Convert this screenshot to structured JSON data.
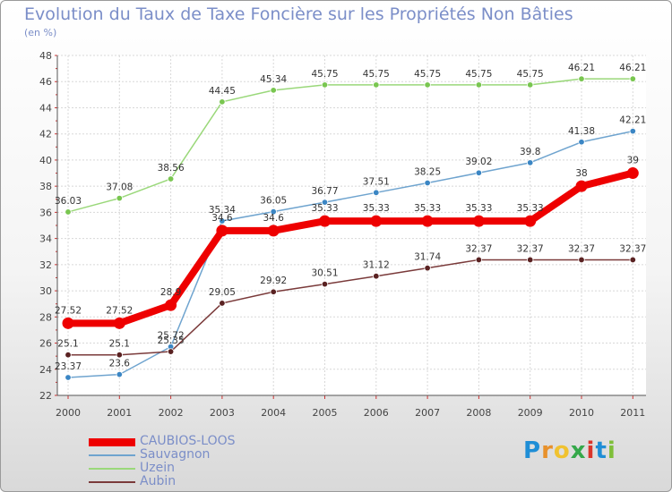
{
  "title": "Evolution du Taux de Taxe Foncière sur les Propriétés Non Bâties",
  "subtitle": "(en %)",
  "logo": {
    "text": "Proxiti",
    "colors": [
      "#1f8ed6",
      "#e8912b",
      "#f0c230",
      "#35a84a",
      "#d9352b",
      "#1f8ed6",
      "#7fbf3a"
    ]
  },
  "chart_data": {
    "type": "line",
    "title": "Evolution du Taux de Taxe Foncière sur les Propriétés Non Bâties",
    "ylabel": "(en %)",
    "xlabel": "",
    "ylim": [
      22,
      48
    ],
    "yticks": [
      22,
      24,
      26,
      28,
      30,
      32,
      34,
      36,
      38,
      40,
      42,
      44,
      46,
      48
    ],
    "grid": true,
    "categories": [
      "2000",
      "2001",
      "2002",
      "2003",
      "2004",
      "2005",
      "2006",
      "2007",
      "2008",
      "2009",
      "2010",
      "2011"
    ],
    "series": [
      {
        "name": "CAUBIOS-LOOS",
        "color": "#ee0000",
        "pointColor": "#ee0000",
        "emphasis": true,
        "values": [
          27.52,
          27.52,
          28.9,
          34.6,
          34.6,
          35.33,
          35.33,
          35.33,
          35.33,
          35.33,
          38,
          39
        ],
        "labels": [
          "27.52",
          "27.52",
          "28.9",
          "34.6",
          "34.6",
          "35.33",
          "35.33",
          "35.33",
          "35.33",
          "35.33",
          "38",
          "39"
        ]
      },
      {
        "name": "Sauvagnon",
        "color": "#6fa4cf",
        "pointColor": "#3b86c4",
        "emphasis": false,
        "values": [
          23.37,
          23.6,
          25.72,
          35.34,
          36.05,
          36.77,
          37.51,
          38.25,
          39.02,
          39.8,
          41.38,
          42.21
        ],
        "labels": [
          "23.37",
          "23.6",
          "25.72",
          "35.34",
          "36.05",
          "36.77",
          "37.51",
          "38.25",
          "39.02",
          "39.8",
          "41.38",
          "42.21"
        ]
      },
      {
        "name": "Uzein",
        "color": "#9ad87a",
        "pointColor": "#79c650",
        "emphasis": false,
        "values": [
          36.03,
          37.08,
          38.56,
          44.45,
          45.34,
          45.75,
          45.75,
          45.75,
          45.75,
          45.75,
          46.21,
          46.21
        ],
        "labels": [
          "36.03",
          "37.08",
          "38.56",
          "44.45",
          "45.34",
          "45.75",
          "45.75",
          "45.75",
          "45.75",
          "45.75",
          "46.21",
          "46.21"
        ]
      },
      {
        "name": "Aubin",
        "color": "#7a3a3a",
        "pointColor": "#5a2222",
        "emphasis": false,
        "values": [
          25.1,
          25.1,
          25.35,
          29.05,
          29.92,
          30.51,
          31.12,
          31.74,
          32.37,
          32.37,
          32.37,
          32.37
        ],
        "labels": [
          "25.1",
          "25.1",
          "25.35",
          "29.05",
          "29.92",
          "30.51",
          "31.12",
          "31.74",
          "32.37",
          "32.37",
          "32.37",
          "32.37"
        ]
      }
    ]
  }
}
